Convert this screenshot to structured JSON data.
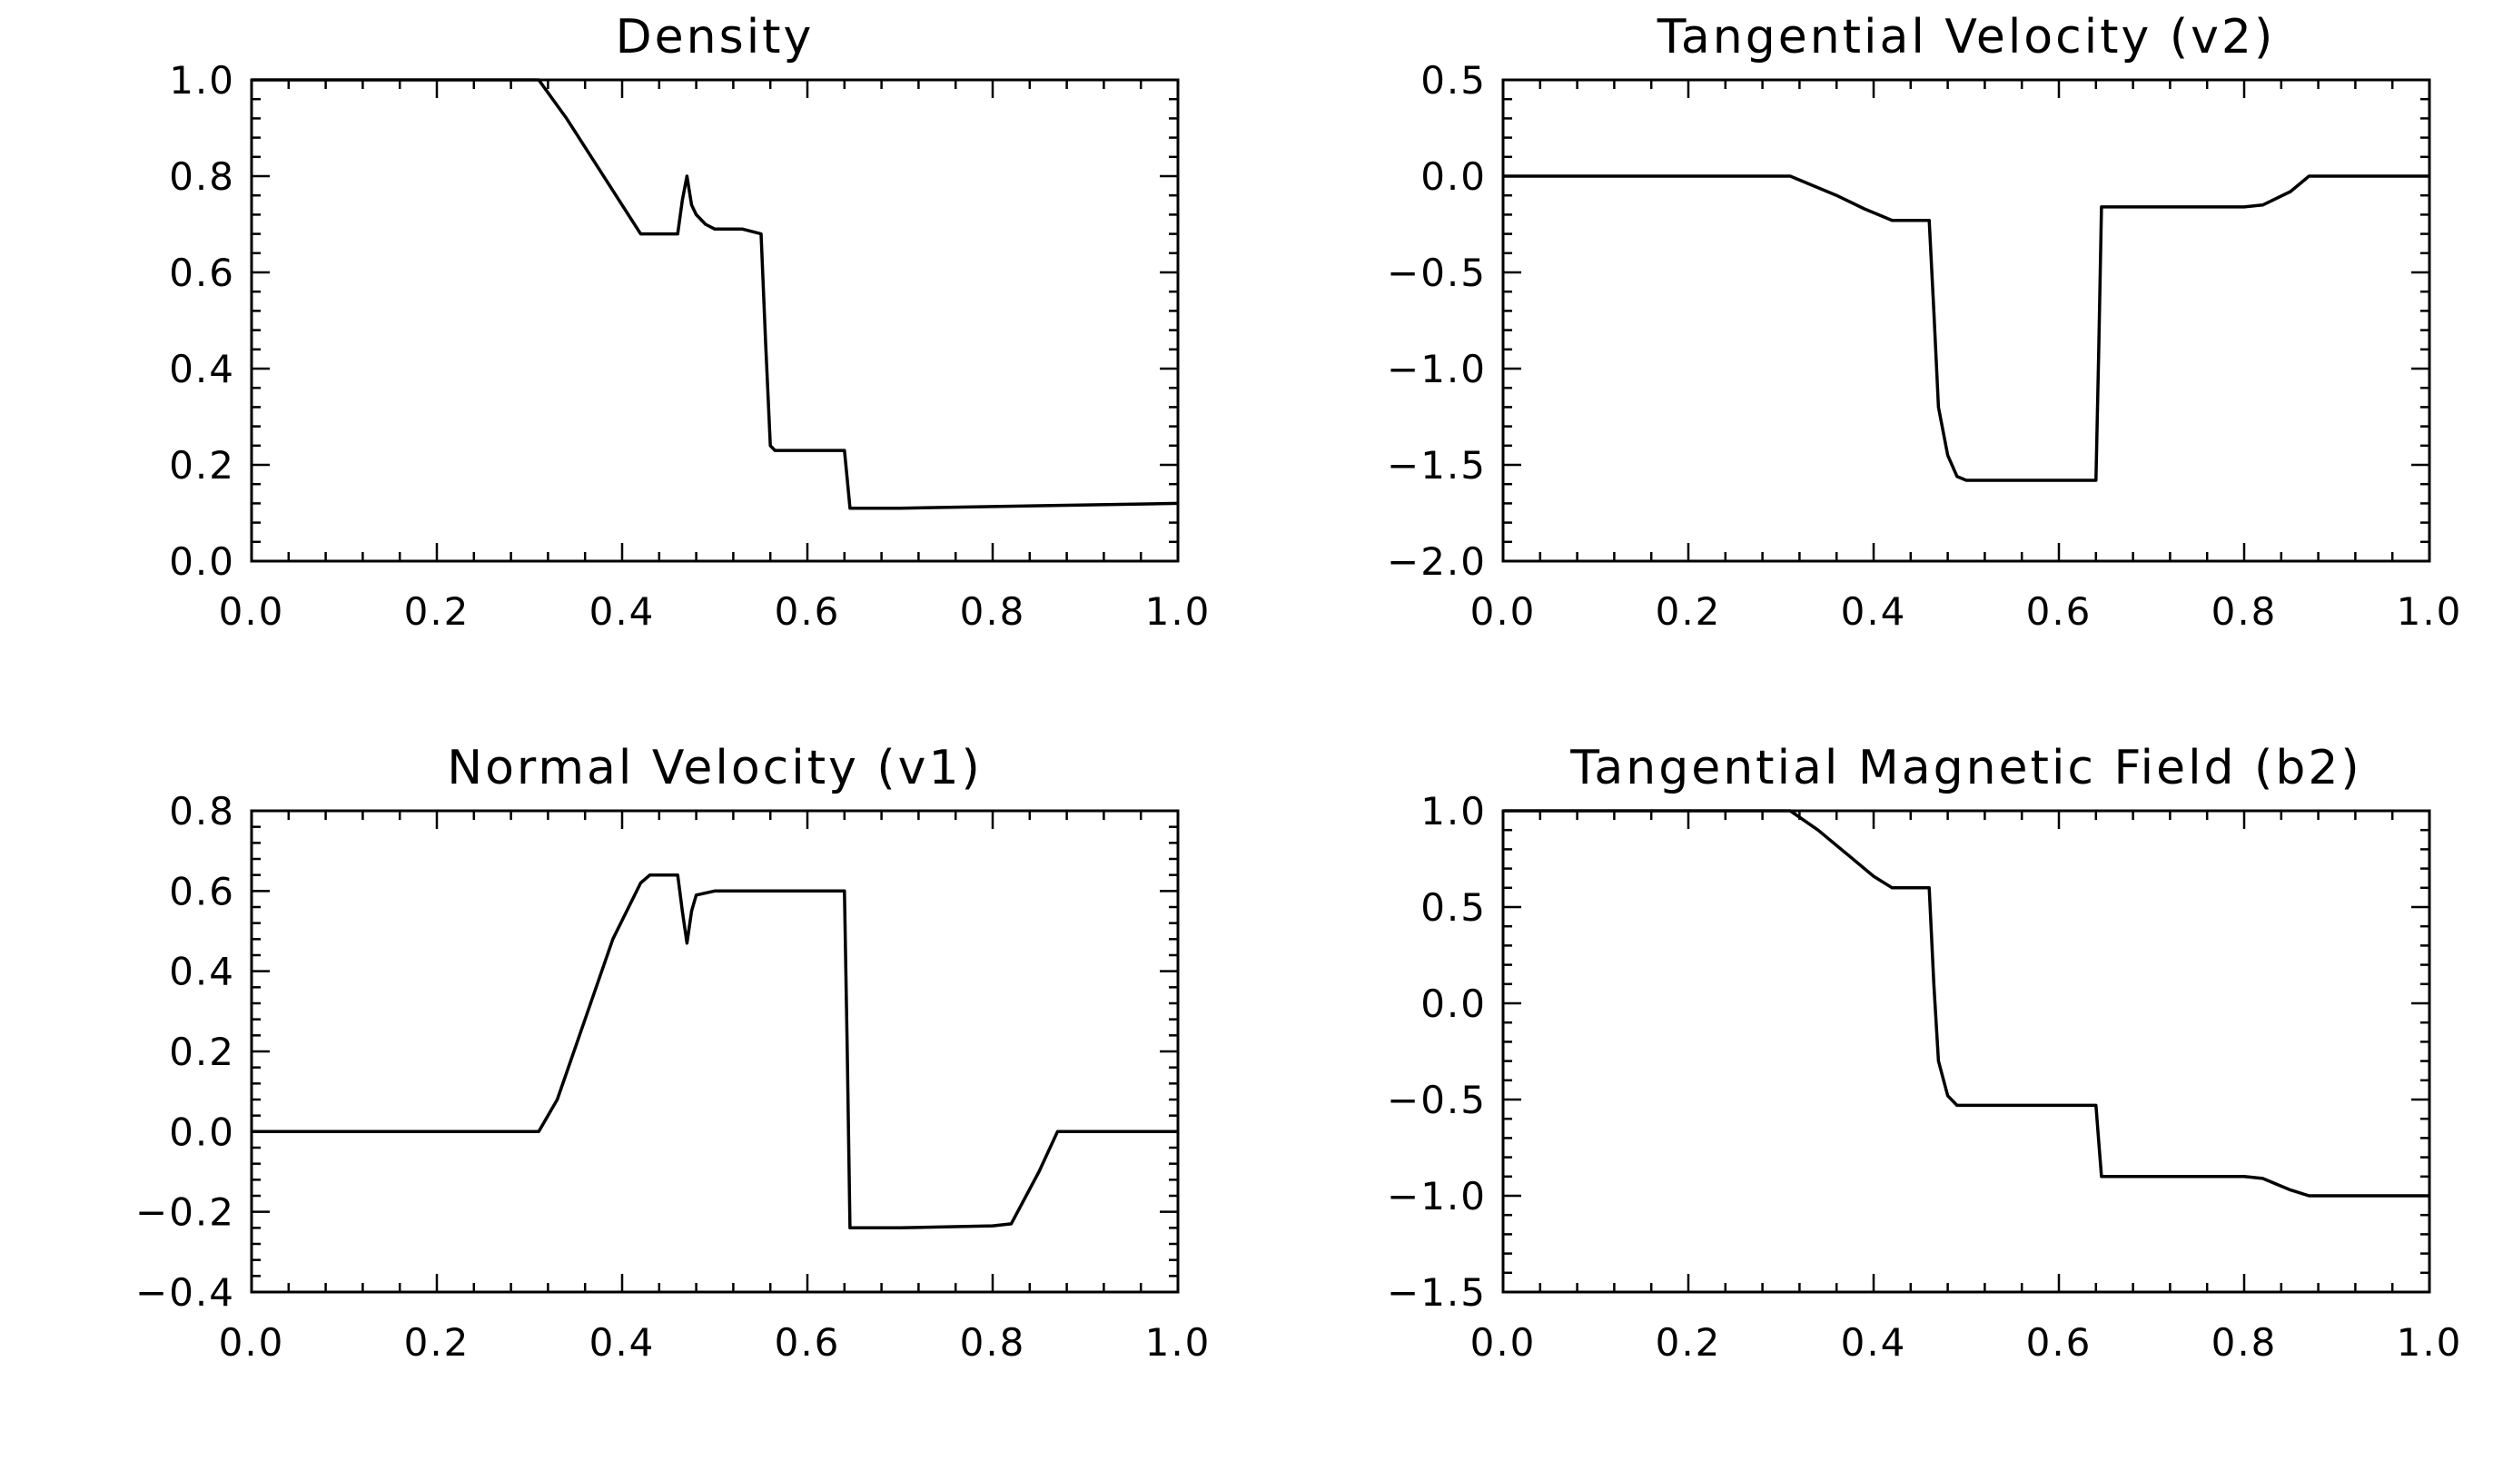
{
  "chart_data": [
    {
      "type": "line",
      "title": "Density",
      "xlabel": "",
      "ylabel": "",
      "xlim": [
        0,
        1
      ],
      "ylim": [
        0,
        1
      ],
      "xticks": [
        "0.0",
        "0.2",
        "0.4",
        "0.6",
        "0.8",
        "1.0"
      ],
      "yticks": [
        "0.0",
        "0.2",
        "0.4",
        "0.6",
        "0.8",
        "1.0"
      ],
      "grid": false,
      "series": [
        {
          "x": [
            0,
            0.31,
            0.34,
            0.37,
            0.4,
            0.42,
            0.46,
            0.465,
            0.47,
            0.475,
            0.48,
            0.49,
            0.5,
            0.53,
            0.55,
            0.555,
            0.56,
            0.565,
            0.64,
            0.643,
            0.646,
            0.7,
            0.85,
            1.0
          ],
          "y": [
            1.0,
            1.0,
            0.92,
            0.83,
            0.74,
            0.68,
            0.68,
            0.75,
            0.8,
            0.74,
            0.72,
            0.7,
            0.69,
            0.69,
            0.68,
            0.45,
            0.24,
            0.23,
            0.23,
            0.17,
            0.11,
            0.11,
            0.115,
            0.12
          ]
        }
      ]
    },
    {
      "type": "line",
      "title": "Tangential Velocity (v2)",
      "xlabel": "",
      "ylabel": "",
      "xlim": [
        0,
        1
      ],
      "ylim": [
        -2.0,
        0.5
      ],
      "xticks": [
        "0.0",
        "0.2",
        "0.4",
        "0.6",
        "0.8",
        "1.0"
      ],
      "yticks": [
        "−2.0",
        "−1.5",
        "−1.0",
        "−0.5",
        "0.0",
        "0.5"
      ],
      "grid": false,
      "series": [
        {
          "x": [
            0,
            0.31,
            0.33,
            0.36,
            0.39,
            0.42,
            0.46,
            0.465,
            0.47,
            0.48,
            0.49,
            0.5,
            0.55,
            0.6,
            0.64,
            0.643,
            0.646,
            0.7,
            0.8,
            0.82,
            0.85,
            0.87,
            1.0
          ],
          "y": [
            0.0,
            0.0,
            -0.04,
            -0.1,
            -0.17,
            -0.23,
            -0.23,
            -0.7,
            -1.2,
            -1.45,
            -1.56,
            -1.58,
            -1.58,
            -1.58,
            -1.58,
            -0.9,
            -0.16,
            -0.16,
            -0.16,
            -0.15,
            -0.08,
            0.0,
            0.0
          ]
        }
      ]
    },
    {
      "type": "line",
      "title": "Normal Velocity (v1)",
      "xlabel": "",
      "ylabel": "",
      "xlim": [
        0,
        1
      ],
      "ylim": [
        -0.4,
        0.8
      ],
      "xticks": [
        "0.0",
        "0.2",
        "0.4",
        "0.6",
        "0.8",
        "1.0"
      ],
      "yticks": [
        "−0.4",
        "−0.2",
        "0.0",
        "0.2",
        "0.4",
        "0.6",
        "0.8"
      ],
      "grid": false,
      "series": [
        {
          "x": [
            0,
            0.31,
            0.33,
            0.36,
            0.39,
            0.42,
            0.43,
            0.46,
            0.465,
            0.47,
            0.475,
            0.48,
            0.5,
            0.55,
            0.64,
            0.643,
            0.646,
            0.7,
            0.8,
            0.82,
            0.85,
            0.87,
            1.0
          ],
          "y": [
            0.0,
            0.0,
            0.08,
            0.28,
            0.48,
            0.62,
            0.64,
            0.64,
            0.55,
            0.47,
            0.55,
            0.59,
            0.6,
            0.6,
            0.6,
            0.2,
            -0.24,
            -0.24,
            -0.235,
            -0.23,
            -0.1,
            0.0,
            0.0
          ]
        }
      ]
    },
    {
      "type": "line",
      "title": "Tangential Magnetic Field (b2)",
      "xlabel": "",
      "ylabel": "",
      "xlim": [
        0,
        1
      ],
      "ylim": [
        -1.5,
        1.0
      ],
      "xticks": [
        "0.0",
        "0.2",
        "0.4",
        "0.6",
        "0.8",
        "1.0"
      ],
      "yticks": [
        "−1.5",
        "−1.0",
        "−0.5",
        "0.0",
        "0.5",
        "1.0"
      ],
      "grid": false,
      "series": [
        {
          "x": [
            0,
            0.31,
            0.34,
            0.37,
            0.4,
            0.42,
            0.46,
            0.465,
            0.47,
            0.48,
            0.49,
            0.5,
            0.6,
            0.64,
            0.643,
            0.646,
            0.7,
            0.8,
            0.82,
            0.85,
            0.87,
            1.0
          ],
          "y": [
            1.0,
            1.0,
            0.9,
            0.78,
            0.66,
            0.6,
            0.6,
            0.1,
            -0.3,
            -0.48,
            -0.53,
            -0.53,
            -0.53,
            -0.53,
            -0.72,
            -0.9,
            -0.9,
            -0.9,
            -0.91,
            -0.97,
            -1.0,
            -1.0
          ]
        }
      ]
    }
  ]
}
